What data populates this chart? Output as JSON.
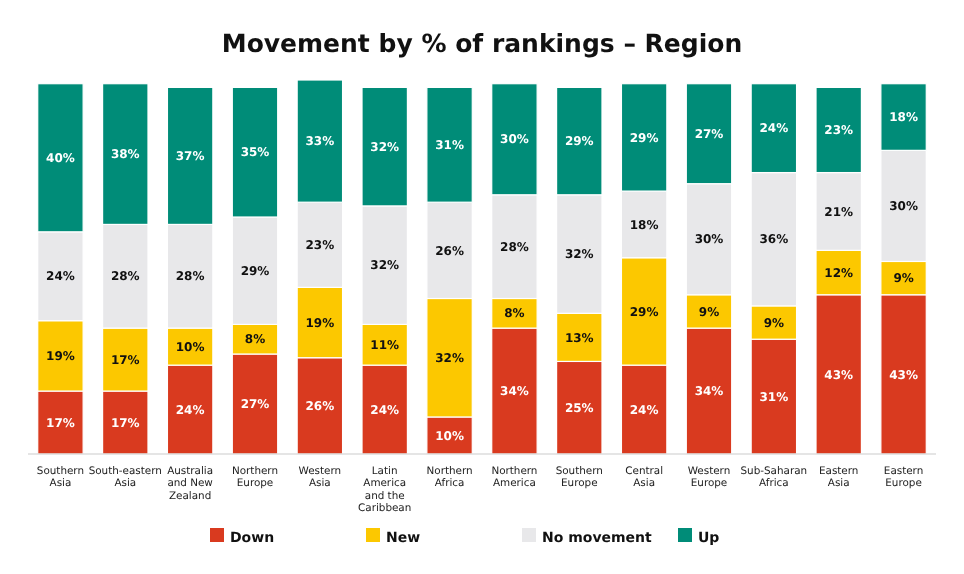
{
  "chart_data": {
    "type": "bar",
    "title": "Movement by % of rankings – Region",
    "stacked": true,
    "legend": "bottom",
    "tick_labels": "x",
    "ylim": [
      0,
      101
    ],
    "categories": [
      "Southern Asia",
      "South-eastern Asia",
      "Australia and New Zealand",
      "Northern Europe",
      "Western Asia",
      "Latin America and the Caribbean",
      "Northern Africa",
      "Northern America",
      "Southern Europe",
      "Central Asia",
      "Western Europe",
      "Sub-Saharan Africa",
      "Eastern Asia",
      "Eastern Europe"
    ],
    "series": [
      {
        "name": "Down",
        "color": "#d93a1f",
        "values": [
          17,
          17,
          24,
          27,
          26,
          24,
          10,
          34,
          25,
          24,
          34,
          31,
          43,
          43
        ],
        "value_labels": [
          "17%",
          "17%",
          "24%",
          "27%",
          "26%",
          "24%",
          "10%",
          "34%",
          "25%",
          "24%",
          "34%",
          "31%",
          "43%",
          "43%"
        ]
      },
      {
        "name": "New",
        "color": "#fcc800",
        "values": [
          19,
          17,
          10,
          8,
          19,
          11,
          32,
          8,
          13,
          29,
          9,
          9,
          12,
          9
        ],
        "value_labels": [
          "19%",
          "17%",
          "10%",
          "8%",
          "19%",
          "11%",
          "32%",
          "8%",
          "13%",
          "29%",
          "9%",
          "9%",
          "12%",
          "9%"
        ]
      },
      {
        "name": "No movement",
        "color": "#e8e8ea",
        "values": [
          24,
          28,
          28,
          29,
          23,
          32,
          26,
          28,
          32,
          18,
          30,
          36,
          21,
          30
        ],
        "value_labels": [
          "24%",
          "28%",
          "28%",
          "29%",
          "23%",
          "32%",
          "26%",
          "28%",
          "32%",
          "18%",
          "30%",
          "36%",
          "21%",
          "30%"
        ]
      },
      {
        "name": "Up",
        "color": "#008c78",
        "values": [
          40,
          38,
          37,
          35,
          33,
          32,
          31,
          30,
          29,
          29,
          27,
          24,
          23,
          18
        ],
        "value_labels": [
          "40%",
          "38%",
          "37%",
          "35%",
          "33%",
          "32%",
          "31%",
          "30%",
          "29%",
          "29%",
          "27%",
          "24%",
          "23%",
          "18%"
        ]
      }
    ]
  }
}
